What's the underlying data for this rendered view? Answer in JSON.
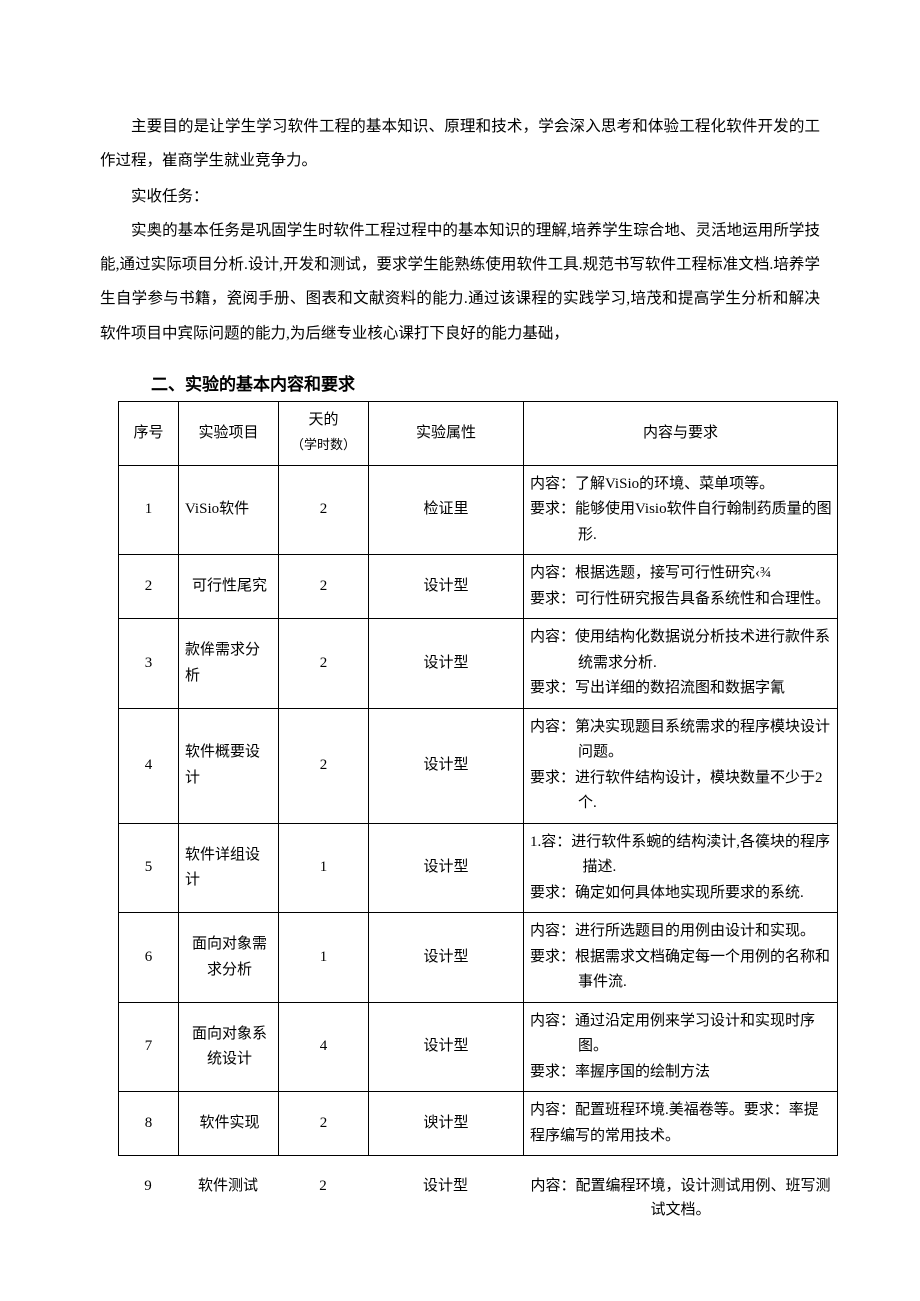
{
  "intro_paragraph": "主要目的是让学生学习软件工程的基本知识、原理和技术，学会深入思考和体验工程化软件开发的工作过程，崔商学生就业竞争力。",
  "task_label": "实收任务：",
  "task_paragraph": "实奥的基本任务是巩固学生时软件工程过程中的基本知识的理解,培养学生琮合地、灵活地运用所学技能,通过实际项目分析.设计,开发和测试，要求学生能熟练使用软件工具.规范书写软件工程标准文档.培养学生自学参与书籍，瓷阅手册、图表和文献资料的能力.通过该课程的实践学习,培茂和提高学生分析和解决软件项目中宾际问题的能力,为后继专业核心课打下良好的能力基础，",
  "section_title": "二、实验的基本内容和要求",
  "table": {
    "headers": {
      "seq": "序号",
      "project": "实验项目",
      "hours_line1": "天的",
      "hours_line2": "（学时数）",
      "attribute": "实验属性",
      "content": "内容与要求"
    },
    "rows": [
      {
        "seq": "1",
        "project": "ViSio软件",
        "hours": "2",
        "attr": "检证里",
        "content_line1": "内容：了解ViSio的环境、菜单项等。",
        "content_line2": "要求：能够使用Visio软件自行翰制药质量的图形."
      },
      {
        "seq": "2",
        "project": "可行性尾究",
        "hours": "2",
        "attr": "设计型",
        "content_line1": "内容：根据选题，接写可行性研究‹¾",
        "content_line2": "要求：可行性研究报告具备系统性和合理性。"
      },
      {
        "seq": "3",
        "project": "款侔需求分析",
        "hours": "2",
        "attr": "设计型",
        "content_line1": "内容：使用结构化数据说分析技术进行款件系统需求分析.",
        "content_line2": "要求：写出详细的数招流图和数据字氰"
      },
      {
        "seq": "4",
        "project": "软件概要设计",
        "hours": "2",
        "attr": "设计型",
        "content_line1": "内容：第决实现题目系统需求的程序模块设计问题。",
        "content_line2": "要求：进行软件结构设计，模块数量不少于2个."
      },
      {
        "seq": "5",
        "project": "软件详组设计",
        "hours": "1",
        "attr": "设计型",
        "content_line1": "1.容：进行软件系蜿的结构渎计,各篌块的程序描述.",
        "content_line2": "要求：确定如何具体地实现所要求的系统."
      },
      {
        "seq": "6",
        "project": "面向对象需求分析",
        "hours": "1",
        "attr": "设计型",
        "content_line1": "内容：进行所选题目的用例由设计和实现。",
        "content_line2": "要求：根据需求文档确定每一个用例的名称和事件流."
      },
      {
        "seq": "7",
        "project": "面向对象系统设计",
        "hours": "4",
        "attr": "设计型",
        "content_line1": "内容：通过沿定用例来学习设计和实现时序图。",
        "content_line2": "要求：率握序国的绘制方法"
      },
      {
        "seq": "8",
        "project": "软件实现",
        "hours": "2",
        "attr": "谀计型",
        "content_line1": "内容：配置班程环境.美福卷等。要求：率提程序编写的常用技术。",
        "content_line2": ""
      }
    ],
    "orphan_row": {
      "seq": "9",
      "project": "软件测试",
      "hours": "2",
      "attr": "设计型",
      "content_line1": "内容：配置编程环境，设计测试用例、班写测试文档。"
    }
  }
}
